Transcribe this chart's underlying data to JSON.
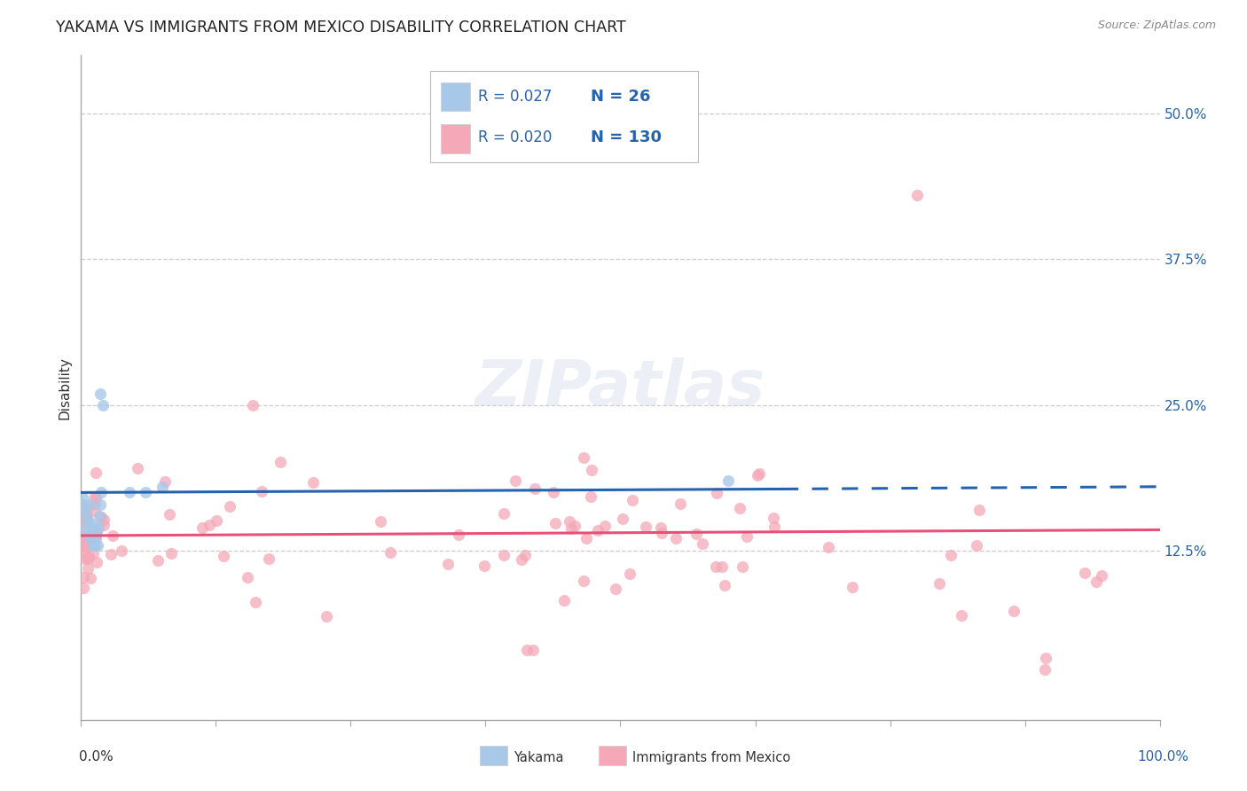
{
  "title": "YAKAMA VS IMMIGRANTS FROM MEXICO DISABILITY CORRELATION CHART",
  "source": "Source: ZipAtlas.com",
  "ylabel": "Disability",
  "legend_r_blue": "0.027",
  "legend_n_blue": "26",
  "legend_r_pink": "0.020",
  "legend_n_pink": "130",
  "blue_color": "#a8c8e8",
  "pink_color": "#f4a8b8",
  "blue_line_color": "#2563ae",
  "pink_line_color": "#e8507a",
  "right_yticks": [
    0.125,
    0.25,
    0.375,
    0.5
  ],
  "right_ytick_labels": [
    "12.5%",
    "25.0%",
    "37.5%",
    "50.0%"
  ],
  "xmin": 0.0,
  "xmax": 1.0,
  "ymin": -0.02,
  "ymax": 0.55,
  "background_color": "#ffffff"
}
